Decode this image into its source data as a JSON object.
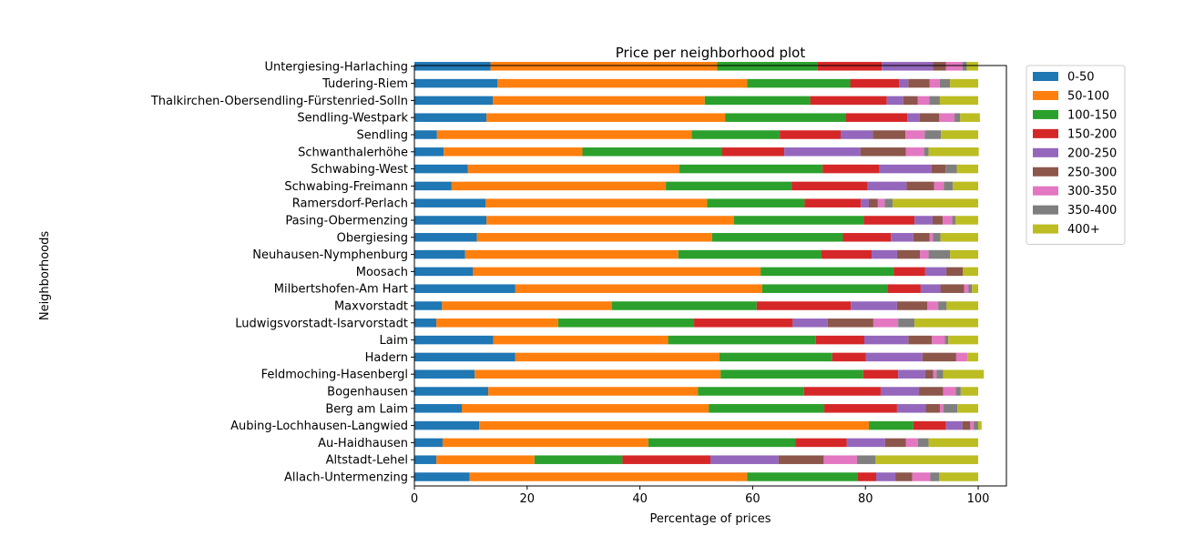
{
  "chart_data": {
    "type": "bar",
    "orientation": "horizontal",
    "stacked": true,
    "title": "Price per neighborhood plot",
    "xlabel": "Percentage of prices",
    "ylabel": "Neighborhoods",
    "xlim": [
      0,
      105
    ],
    "xticks": [
      0,
      20,
      40,
      60,
      80,
      100
    ],
    "grid": false,
    "legend_position": "outside-right",
    "categories": [
      "Allach-Untermenzing",
      "Altstadt-Lehel",
      "Au-Haidhausen",
      "Aubing-Lochhausen-Langwied",
      "Berg am Laim",
      "Bogenhausen",
      "Feldmoching-Hasenbergl",
      "Hadern",
      "Laim",
      "Ludwigsvorstadt-Isarvorstadt",
      "Maxvorstadt",
      "Milbertshofen-Am Hart",
      "Moosach",
      "Neuhausen-Nymphenburg",
      "Obergiesing",
      "Pasing-Obermenzing",
      "Ramersdorf-Perlach",
      "Schwabing-Freimann",
      "Schwabing-West",
      "Schwanthalerhöhe",
      "Sendling",
      "Sendling-Westpark",
      "Thalkirchen-Obersendling-Fürstenried-Solln",
      "Tudering-Riem",
      "Untergiesing-Harlaching"
    ],
    "series": [
      {
        "name": "0-50",
        "color": "#1f77b4",
        "values": [
          9.8,
          3.9,
          5.0,
          11.5,
          8.4,
          13.1,
          10.7,
          17.9,
          14.0,
          3.9,
          4.9,
          17.9,
          10.4,
          9.0,
          11.1,
          12.8,
          12.6,
          6.6,
          9.5,
          5.2,
          4.0,
          12.8,
          13.9,
          14.7,
          13.5
        ]
      },
      {
        "name": "50-100",
        "color": "#ff7f0e",
        "values": [
          49.2,
          17.4,
          36.5,
          69.1,
          43.8,
          37.2,
          43.6,
          36.2,
          31.0,
          21.6,
          30.1,
          43.8,
          51.0,
          37.8,
          41.7,
          43.9,
          39.3,
          38.0,
          37.5,
          24.6,
          45.2,
          42.3,
          37.6,
          44.3,
          40.2
        ]
      },
      {
        "name": "100-150",
        "color": "#2ca02c",
        "values": [
          19.6,
          15.6,
          26.1,
          7.9,
          20.5,
          18.8,
          25.3,
          20.0,
          26.2,
          24.1,
          25.7,
          22.2,
          23.6,
          25.4,
          23.2,
          23.0,
          17.3,
          22.3,
          25.4,
          24.8,
          15.6,
          21.4,
          18.7,
          18.3,
          17.8
        ]
      },
      {
        "name": "150-200",
        "color": "#d62728",
        "values": [
          3.3,
          15.6,
          9.1,
          5.8,
          12.9,
          13.6,
          6.2,
          6.0,
          8.6,
          17.5,
          16.7,
          5.9,
          5.6,
          8.9,
          8.5,
          9.0,
          10.0,
          13.5,
          10.1,
          11.0,
          10.8,
          10.9,
          13.6,
          8.7,
          11.4
        ]
      },
      {
        "name": "200-250",
        "color": "#9467bd",
        "values": [
          3.4,
          12.1,
          6.8,
          2.9,
          5.1,
          6.8,
          4.8,
          10.0,
          7.8,
          6.2,
          8.2,
          3.5,
          3.7,
          4.5,
          4.0,
          3.2,
          1.4,
          6.9,
          9.2,
          13.5,
          5.7,
          2.2,
          2.9,
          1.6,
          9.1
        ]
      },
      {
        "name": "250-300",
        "color": "#8c564b",
        "values": [
          3.0,
          8.0,
          3.7,
          1.4,
          2.5,
          4.3,
          1.4,
          6.0,
          4.2,
          8.1,
          5.4,
          4.2,
          3.0,
          4.1,
          2.9,
          1.8,
          1.6,
          4.9,
          2.5,
          8.1,
          5.8,
          3.5,
          2.6,
          3.8,
          2.3
        ]
      },
      {
        "name": "300-350",
        "color": "#e377c2",
        "values": [
          3.2,
          5.9,
          2.1,
          0.6,
          0.6,
          2.2,
          0.6,
          2.0,
          2.3,
          4.4,
          1.9,
          0.8,
          0.0,
          1.5,
          0.6,
          1.7,
          1.2,
          1.7,
          0.0,
          3.2,
          3.4,
          2.7,
          2.0,
          1.8,
          2.9
        ]
      },
      {
        "name": "350-400",
        "color": "#7f7f7f",
        "values": [
          1.6,
          3.3,
          1.9,
          0.8,
          2.5,
          0.9,
          1.2,
          0.0,
          0.6,
          2.9,
          1.5,
          0.6,
          0.0,
          3.8,
          1.3,
          0.6,
          1.4,
          1.6,
          2.0,
          0.8,
          2.9,
          1.0,
          1.9,
          1.8,
          0.8
        ]
      },
      {
        "name": "400+",
        "color": "#bcbd22",
        "values": [
          6.9,
          18.2,
          8.8,
          0.6,
          3.7,
          3.1,
          7.2,
          1.9,
          5.3,
          11.3,
          5.6,
          1.1,
          2.7,
          5.0,
          6.7,
          4.0,
          15.2,
          4.5,
          3.8,
          8.9,
          6.6,
          3.5,
          6.8,
          5.0,
          2.0
        ]
      }
    ]
  }
}
